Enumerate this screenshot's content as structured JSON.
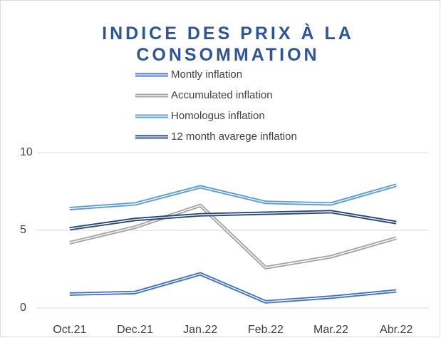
{
  "chart_data": {
    "type": "line",
    "title": "INDICE DES PRIX À LA CONSOMMATION",
    "categories": [
      "Oct.21",
      "Dec.21",
      "Jan.22",
      "Feb.22",
      "Mar.22",
      "Abr.22"
    ],
    "series": [
      {
        "name": "Montly inflation",
        "color": "#4472c4",
        "values": [
          0.9,
          1.0,
          2.2,
          0.4,
          0.7,
          1.1
        ]
      },
      {
        "name": "Accumulated inflation",
        "color": "#a5a5a5",
        "values": [
          4.2,
          5.2,
          6.6,
          2.6,
          3.3,
          4.5
        ]
      },
      {
        "name": "Homologus inflation",
        "color": "#5b9bd5",
        "values": [
          6.4,
          6.7,
          7.8,
          6.8,
          6.7,
          7.9
        ]
      },
      {
        "name": "12 month avarege inflation",
        "color": "#264478",
        "values": [
          5.1,
          5.7,
          6.0,
          6.1,
          6.2,
          5.5
        ]
      }
    ],
    "ylim": [
      0,
      10
    ],
    "yticks": [
      0,
      5,
      10
    ],
    "grid": true,
    "legend": "top"
  }
}
